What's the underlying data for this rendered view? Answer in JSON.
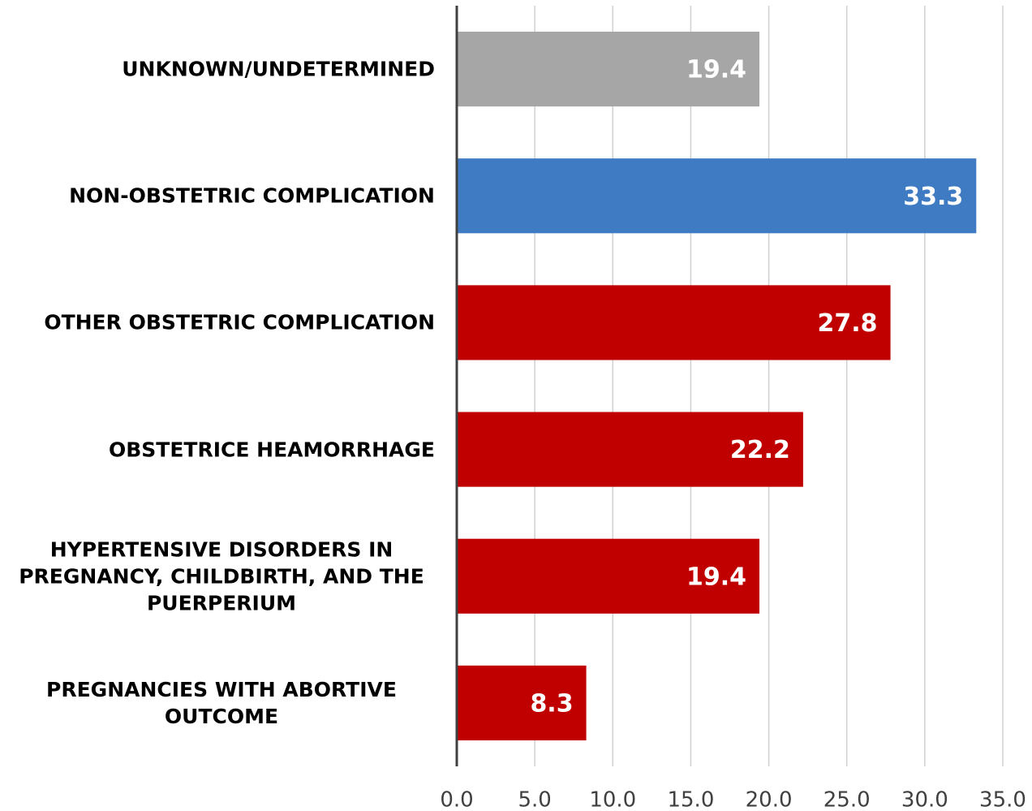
{
  "chart_data": {
    "type": "barh",
    "categories": [
      "UNKNOWN/UNDETERMINED",
      "NON-OBSTETRIC COMPLICATION",
      "OTHER OBSTETRIC COMPLICATION",
      "OBSTETRICE HEAMORRHAGE",
      "HYPERTENSIVE DISORDERS IN PREGNANCY, CHILDBIRTH, AND THE PUERPERIUM",
      "PREGNANCIES WITH ABORTIVE OUTCOME"
    ],
    "values": [
      19.4,
      33.3,
      27.8,
      22.2,
      19.4,
      8.3
    ],
    "colors": [
      "#a6a6a6",
      "#3f7bc3",
      "#c00000",
      "#c00000",
      "#c00000",
      "#c00000"
    ],
    "xlim": [
      0,
      35
    ],
    "xticks": [
      {
        "value": 0,
        "label": "0.0"
      },
      {
        "value": 5,
        "label": "5.0"
      },
      {
        "value": 10,
        "label": "10.0"
      },
      {
        "value": 15,
        "label": "15.0"
      },
      {
        "value": 20,
        "label": "20.0"
      },
      {
        "value": 25,
        "label": "25.0"
      },
      {
        "value": 30,
        "label": "30.0"
      },
      {
        "value": 35,
        "label": "35.0"
      }
    ],
    "grid": true
  }
}
